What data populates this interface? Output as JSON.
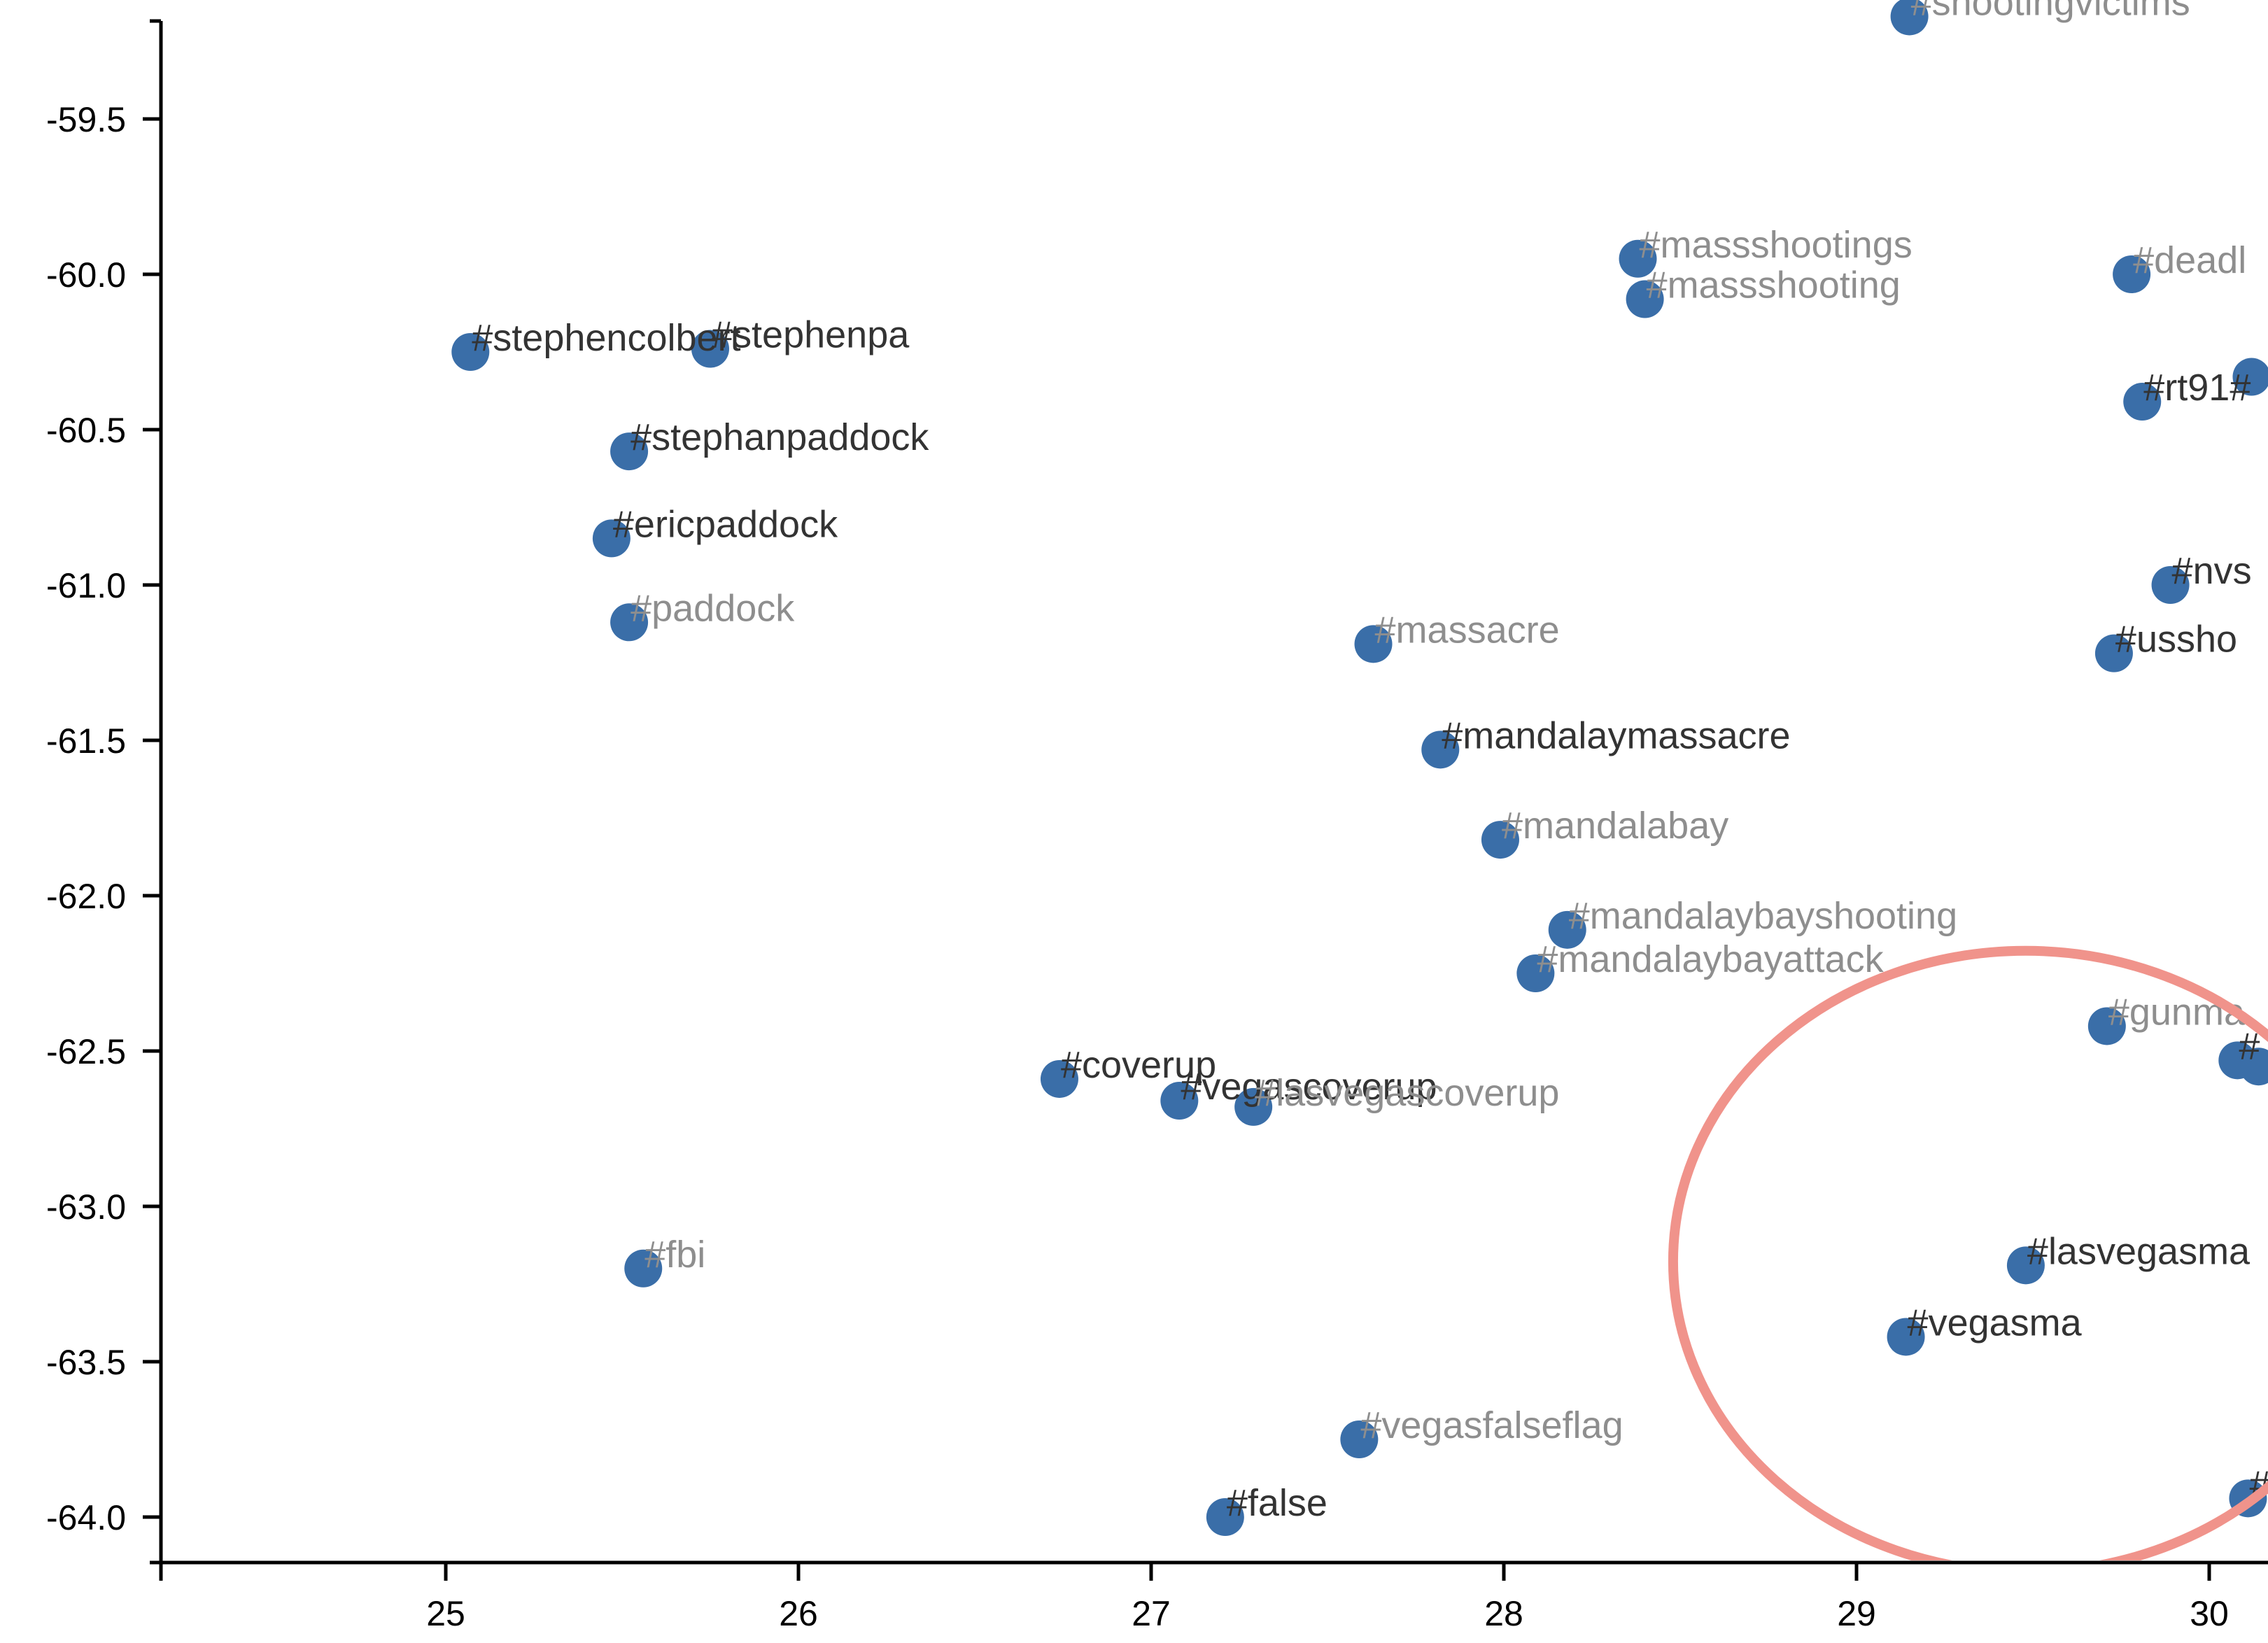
{
  "chart_data": {
    "type": "scatter",
    "title": "",
    "xlabel": "",
    "ylabel": "",
    "xlim": [
      24.2,
      30.15
    ],
    "ylim": [
      -64.18,
      -59.18
    ],
    "grid": false,
    "x_ticks": [
      "25",
      "26",
      "27",
      "28",
      "29",
      "30"
    ],
    "y_ticks": [
      "-59.5",
      "-60.0",
      "-60.5",
      "-61.0",
      "-61.5",
      "-62.0",
      "-62.5",
      "-63.0",
      "-63.5",
      "-64.0"
    ],
    "points": [
      {
        "x": 29.15,
        "y": -59.17,
        "label": "#shootingvictims",
        "tone": "light"
      },
      {
        "x": 28.38,
        "y": -59.95,
        "label": "#massshootings",
        "tone": "light"
      },
      {
        "x": 28.4,
        "y": -60.08,
        "label": "#massshooting",
        "tone": "light"
      },
      {
        "x": 29.78,
        "y": -60.0,
        "label": "#deadl",
        "tone": "light"
      },
      {
        "x": 25.07,
        "y": -60.25,
        "label": "#stephencolbert",
        "tone": "dark"
      },
      {
        "x": 25.75,
        "y": -60.24,
        "label": "#stephenpa",
        "tone": "dark"
      },
      {
        "x": 29.81,
        "y": -60.41,
        "label": "#rt91#",
        "tone": "dark"
      },
      {
        "x": 30.12,
        "y": -60.33,
        "label": "",
        "tone": "dark"
      },
      {
        "x": 25.52,
        "y": -60.57,
        "label": "#stephanpaddock",
        "tone": "dark"
      },
      {
        "x": 25.47,
        "y": -60.85,
        "label": "#ericpaddock",
        "tone": "dark"
      },
      {
        "x": 25.52,
        "y": -61.12,
        "label": "#paddock",
        "tone": "light"
      },
      {
        "x": 29.89,
        "y": -61.0,
        "label": "#nvs",
        "tone": "dark"
      },
      {
        "x": 27.63,
        "y": -61.19,
        "label": "#massacre",
        "tone": "light"
      },
      {
        "x": 29.73,
        "y": -61.22,
        "label": "#ussho",
        "tone": "dark"
      },
      {
        "x": 27.82,
        "y": -61.53,
        "label": "#mandalaymassacre",
        "tone": "dark"
      },
      {
        "x": 27.99,
        "y": -61.82,
        "label": "#mandalabay",
        "tone": "light"
      },
      {
        "x": 28.18,
        "y": -62.11,
        "label": "#mandalaybayshooting",
        "tone": "light"
      },
      {
        "x": 28.09,
        "y": -62.25,
        "label": "#mandalaybayattack",
        "tone": "light"
      },
      {
        "x": 29.71,
        "y": -62.42,
        "label": "#gunma",
        "tone": "light"
      },
      {
        "x": 30.08,
        "y": -62.53,
        "label": "#",
        "tone": "dark"
      },
      {
        "x": 30.14,
        "y": -62.55,
        "label": "",
        "tone": "dark"
      },
      {
        "x": 26.74,
        "y": -62.59,
        "label": "#coverup",
        "tone": "dark"
      },
      {
        "x": 27.08,
        "y": -62.66,
        "label": "#vegascoverup",
        "tone": "dark"
      },
      {
        "x": 27.29,
        "y": -62.68,
        "label": "#lasvegascoverup",
        "tone": "light"
      },
      {
        "x": 25.56,
        "y": -63.2,
        "label": "#fbi",
        "tone": "light"
      },
      {
        "x": 29.48,
        "y": -63.19,
        "label": "#lasvegasma",
        "tone": "dark"
      },
      {
        "x": 29.14,
        "y": -63.42,
        "label": "#vegasma",
        "tone": "dark"
      },
      {
        "x": 27.59,
        "y": -63.75,
        "label": "#vegasfalseflag",
        "tone": "light"
      },
      {
        "x": 27.21,
        "y": -64.0,
        "label": "#false",
        "tone": "dark"
      },
      {
        "x": 30.11,
        "y": -63.94,
        "label": "#",
        "tone": "dark"
      }
    ],
    "point_color": "#3a6ea8",
    "label_color_dark": "#333333",
    "label_color_light": "#8e8e8e",
    "highlight": {
      "shape": "ellipse",
      "color": "#f0938b",
      "center": {
        "x": 29.48,
        "y": -63.2
      },
      "radius_x": 1.0,
      "radius_y": 1.0
    }
  }
}
